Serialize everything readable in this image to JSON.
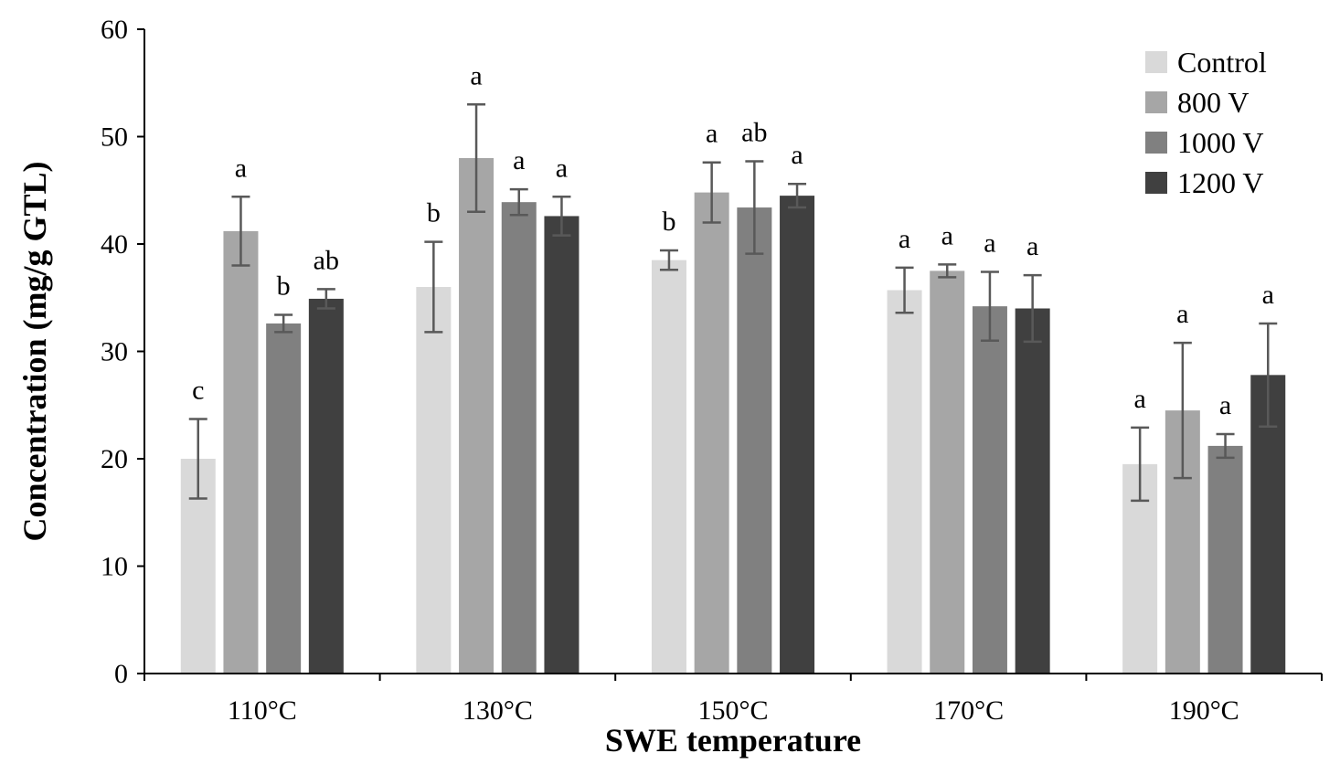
{
  "chart_data": {
    "type": "bar",
    "title": "",
    "xlabel": "SWE temperature",
    "ylabel": "Concentration (mg/g GTL)",
    "ylim": [
      0,
      60
    ],
    "yticks": [
      0,
      10,
      20,
      30,
      40,
      50,
      60
    ],
    "grid": false,
    "legend_position": "top-right",
    "categories": [
      "110°C",
      "130°C",
      "150°C",
      "170°C",
      "190°C"
    ],
    "series": [
      {
        "name": "Control",
        "color": "#d9d9d9",
        "values": [
          20.0,
          36.0,
          38.5,
          35.7,
          19.5
        ],
        "errors": [
          3.7,
          4.2,
          0.9,
          2.1,
          3.4
        ],
        "letters": [
          "c",
          "b",
          "b",
          "a",
          "a"
        ]
      },
      {
        "name": "800 V",
        "color": "#a6a6a6",
        "values": [
          41.2,
          48.0,
          44.8,
          37.5,
          24.5
        ],
        "errors": [
          3.2,
          5.0,
          2.8,
          0.6,
          6.3
        ],
        "letters": [
          "a",
          "a",
          "a",
          "a",
          "a"
        ]
      },
      {
        "name": "1000 V",
        "color": "#808080",
        "values": [
          32.6,
          43.9,
          43.4,
          34.2,
          21.2
        ],
        "errors": [
          0.8,
          1.2,
          4.3,
          3.2,
          1.1
        ],
        "letters": [
          "b",
          "a",
          "ab",
          "a",
          "a"
        ]
      },
      {
        "name": "1200 V",
        "color": "#404040",
        "values": [
          34.9,
          42.6,
          44.5,
          34.0,
          27.8
        ],
        "errors": [
          0.9,
          1.8,
          1.1,
          3.1,
          4.8
        ],
        "letters": [
          "ab",
          "a",
          "a",
          "a",
          "a"
        ]
      }
    ]
  }
}
